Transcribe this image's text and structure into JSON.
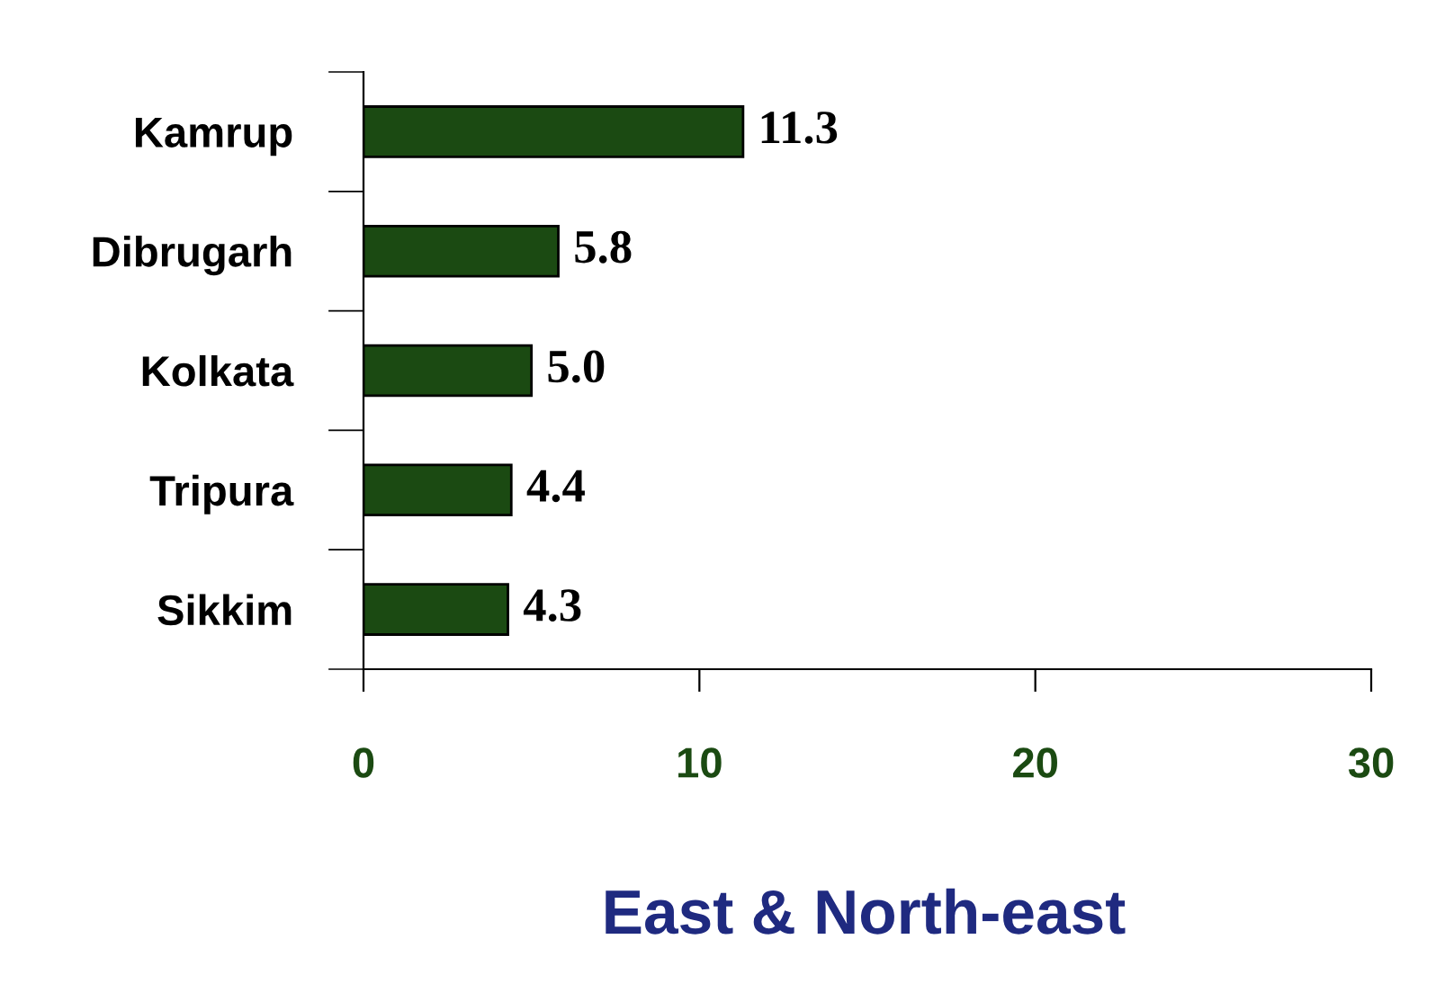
{
  "chart_data": {
    "type": "bar",
    "orientation": "horizontal",
    "title": "East & North-east",
    "categories": [
      "Kamrup",
      "Dibrugarh",
      "Kolkata",
      "Tripura",
      "Sikkim"
    ],
    "values": [
      11.3,
      5.8,
      5.0,
      4.4,
      4.3
    ],
    "value_labels": [
      "11.3",
      "5.8",
      "5.0",
      "4.4",
      "4.3"
    ],
    "color": "#1b4a12",
    "xlim": [
      0,
      30
    ],
    "xticks": [
      0,
      10,
      20,
      30
    ],
    "grid": false,
    "legend": false
  }
}
